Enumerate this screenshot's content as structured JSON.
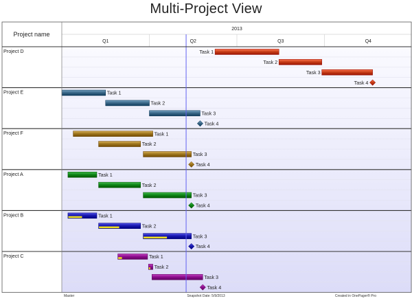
{
  "chart_data": {
    "type": "gantt",
    "title": "Multi-Project View",
    "row_header_label": "Project name",
    "year_label": "2013",
    "quarters": [
      "Q1",
      "Q2",
      "Q3",
      "Q4"
    ],
    "today_marker_quarter_fraction": 1.42,
    "projects": [
      {
        "name": "Project D",
        "color": "#c8401a",
        "tasks": [
          {
            "label": "Task 1",
            "type": "bar",
            "start_q": 1.75,
            "end_q": 2.48
          },
          {
            "label": "Task 2",
            "type": "bar",
            "start_q": 2.48,
            "end_q": 2.97
          },
          {
            "label": "Task 3",
            "type": "bar",
            "start_q": 2.97,
            "end_q": 3.55
          },
          {
            "label": "Task 4",
            "type": "milestone",
            "at_q": 3.55
          }
        ]
      },
      {
        "name": "Project E",
        "color": "#3d6a8a",
        "tasks": [
          {
            "label": "Task 1",
            "type": "bar",
            "start_q": 0.0,
            "end_q": 0.5
          },
          {
            "label": "Task 2",
            "type": "bar",
            "start_q": 0.5,
            "end_q": 1.0
          },
          {
            "label": "Task 3",
            "type": "bar",
            "start_q": 1.0,
            "end_q": 1.58
          },
          {
            "label": "Task 4",
            "type": "milestone",
            "at_q": 1.58
          }
        ]
      },
      {
        "name": "Project F",
        "color": "#a07820",
        "tasks": [
          {
            "label": "Task 1",
            "type": "bar",
            "start_q": 0.13,
            "end_q": 1.04
          },
          {
            "label": "Task 2",
            "type": "bar",
            "start_q": 0.42,
            "end_q": 0.9
          },
          {
            "label": "Task 3",
            "type": "bar",
            "start_q": 0.93,
            "end_q": 1.48
          },
          {
            "label": "Task 4",
            "type": "milestone",
            "at_q": 1.48
          }
        ]
      },
      {
        "name": "Project A",
        "color": "#10881a",
        "tasks": [
          {
            "label": "Task 1",
            "type": "bar",
            "start_q": 0.07,
            "end_q": 0.4
          },
          {
            "label": "Task 2",
            "type": "bar",
            "start_q": 0.42,
            "end_q": 0.9
          },
          {
            "label": "Task 3",
            "type": "bar",
            "start_q": 0.93,
            "end_q": 1.48
          },
          {
            "label": "Task 4",
            "type": "milestone",
            "at_q": 1.48
          }
        ]
      },
      {
        "name": "Project B",
        "color": "#1a1ab0",
        "progress_color": "#f0e020",
        "tasks": [
          {
            "label": "Task 1",
            "type": "bar",
            "start_q": 0.07,
            "end_q": 0.4,
            "progress": 0.5
          },
          {
            "label": "Task 2",
            "type": "bar",
            "start_q": 0.42,
            "end_q": 0.9,
            "progress": 0.5
          },
          {
            "label": "Task 3",
            "type": "bar",
            "start_q": 0.93,
            "end_q": 1.48,
            "progress": 0.5
          },
          {
            "label": "Task 4",
            "type": "milestone",
            "at_q": 1.48
          }
        ]
      },
      {
        "name": "Project C",
        "color": "#901090",
        "progress_color": "#f0e020",
        "tasks": [
          {
            "label": "Task 1",
            "type": "bar",
            "start_q": 0.64,
            "end_q": 0.98,
            "progress": 0.15
          },
          {
            "label": "Task 2",
            "type": "bar",
            "start_q": 0.99,
            "end_q": 1.04,
            "progress": 0.5
          },
          {
            "label": "Task 3",
            "type": "bar",
            "start_q": 1.03,
            "end_q": 1.61
          },
          {
            "label": "Task 4",
            "type": "milestone",
            "at_q": 1.61
          }
        ]
      }
    ]
  },
  "footer": {
    "left": "Master",
    "center": "Snapshot Date: 5/9/2013",
    "right": "Created in OnePager® Pro"
  }
}
